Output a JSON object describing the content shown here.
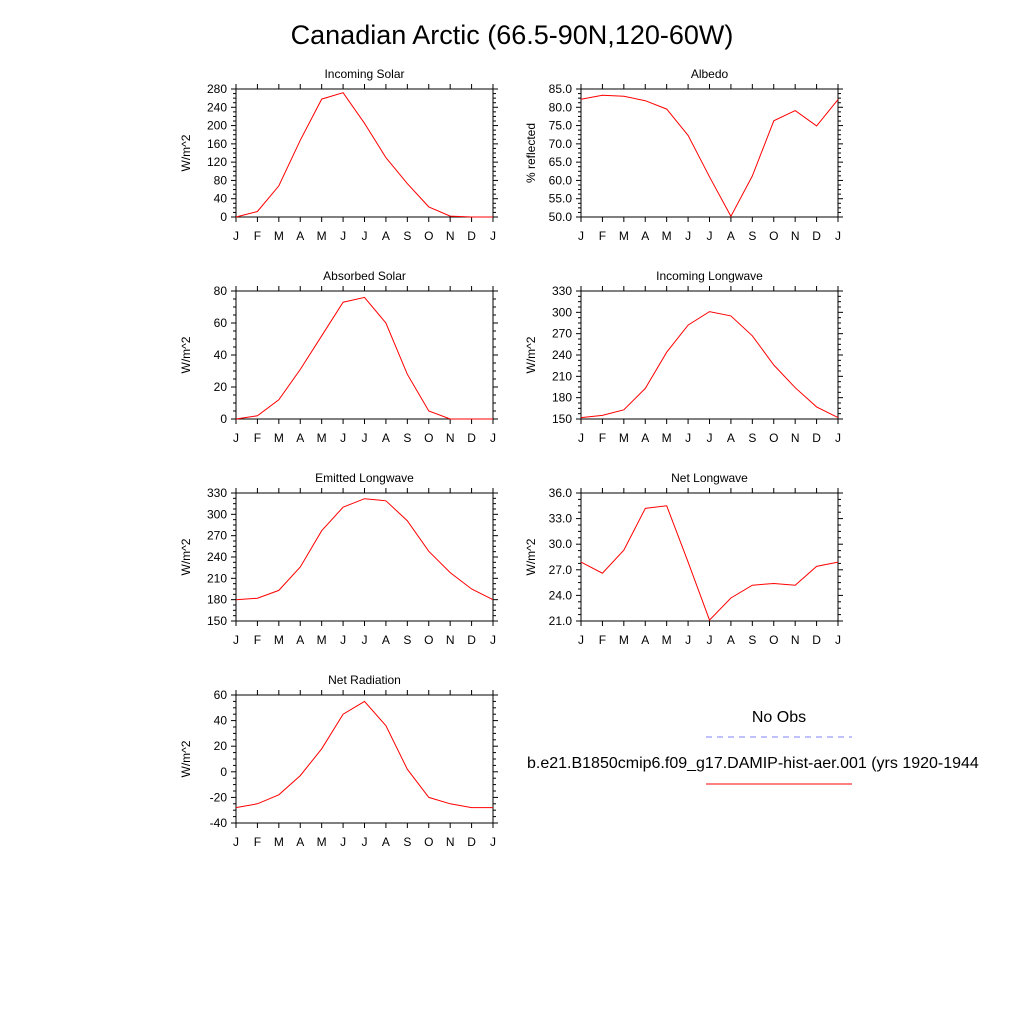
{
  "page": {
    "title": "Canadian Arctic (66.5-90N,120-60W)"
  },
  "legend": {
    "obs_label": "No Obs",
    "obs_color": "#8080ff",
    "model_label": "b.e21.B1850cmip6.f09_g17.DAMIP-hist-aer.001 (yrs 1920-1944",
    "model_color": "#ff0000"
  },
  "chart_data": [
    {
      "type": "line",
      "title": "Incoming Solar",
      "ylabel": "W/m^2",
      "categories": [
        "J",
        "F",
        "M",
        "A",
        "M",
        "J",
        "J",
        "A",
        "S",
        "O",
        "N",
        "D",
        "J"
      ],
      "ylim": [
        0,
        280
      ],
      "yticks": [
        0,
        40,
        80,
        120,
        160,
        200,
        240,
        280
      ],
      "ytick_labels": [
        "0",
        "40",
        "80",
        "120",
        "160",
        "200",
        "240",
        "280"
      ],
      "series": [
        {
          "color": "#ff0000",
          "values": [
            0,
            12,
            68,
            168,
            258,
            272,
            205,
            130,
            73,
            22,
            2,
            0,
            0
          ]
        }
      ]
    },
    {
      "type": "line",
      "title": "Albedo",
      "ylabel": "% reflected",
      "categories": [
        "J",
        "F",
        "M",
        "A",
        "M",
        "J",
        "J",
        "A",
        "S",
        "O",
        "N",
        "D",
        "J"
      ],
      "ylim": [
        50,
        85
      ],
      "yticks": [
        50,
        55,
        60,
        65,
        70,
        75,
        80,
        85
      ],
      "ytick_labels": [
        "50.0",
        "55.0",
        "60.0",
        "65.0",
        "70.0",
        "75.0",
        "80.0",
        "85.0"
      ],
      "series": [
        {
          "color": "#ff0000",
          "values": [
            82.2,
            83.3,
            83.0,
            81.8,
            79.5,
            72.3,
            61.0,
            50.2,
            61.2,
            76.3,
            79.1,
            74.9,
            82.1
          ]
        }
      ]
    },
    {
      "type": "line",
      "title": "Absorbed Solar",
      "ylabel": "W/m^2",
      "categories": [
        "J",
        "F",
        "M",
        "A",
        "M",
        "J",
        "J",
        "A",
        "S",
        "O",
        "N",
        "D",
        "J"
      ],
      "ylim": [
        0,
        80
      ],
      "yticks": [
        0,
        20,
        40,
        60,
        80
      ],
      "ytick_labels": [
        "0",
        "20",
        "40",
        "60",
        "80"
      ],
      "series": [
        {
          "color": "#ff0000",
          "values": [
            0,
            2,
            12,
            31,
            52,
            73,
            76,
            60,
            28,
            5,
            0,
            0,
            0
          ]
        }
      ]
    },
    {
      "type": "line",
      "title": "Incoming Longwave",
      "ylabel": "W/m^2",
      "categories": [
        "J",
        "F",
        "M",
        "A",
        "M",
        "J",
        "J",
        "A",
        "S",
        "O",
        "N",
        "D",
        "J"
      ],
      "ylim": [
        150,
        330
      ],
      "yticks": [
        150,
        180,
        210,
        240,
        270,
        300,
        330
      ],
      "ytick_labels": [
        "150",
        "180",
        "210",
        "240",
        "270",
        "300",
        "330"
      ],
      "series": [
        {
          "color": "#ff0000",
          "values": [
            152,
            155,
            163,
            193,
            244,
            282,
            301,
            295,
            267,
            226,
            194,
            167,
            152
          ]
        }
      ]
    },
    {
      "type": "line",
      "title": "Emitted Longwave",
      "ylabel": "W/m^2",
      "categories": [
        "J",
        "F",
        "M",
        "A",
        "M",
        "J",
        "J",
        "A",
        "S",
        "O",
        "N",
        "D",
        "J"
      ],
      "ylim": [
        150,
        330
      ],
      "yticks": [
        150,
        180,
        210,
        240,
        270,
        300,
        330
      ],
      "ytick_labels": [
        "150",
        "180",
        "210",
        "240",
        "270",
        "300",
        "330"
      ],
      "series": [
        {
          "color": "#ff0000",
          "values": [
            180,
            182,
            193,
            226,
            277,
            310,
            322,
            319,
            291,
            248,
            218,
            195,
            180
          ]
        }
      ]
    },
    {
      "type": "line",
      "title": "Net Longwave",
      "ylabel": "W/m^2",
      "categories": [
        "J",
        "F",
        "M",
        "A",
        "M",
        "J",
        "J",
        "A",
        "S",
        "O",
        "N",
        "D",
        "J"
      ],
      "ylim": [
        21,
        36
      ],
      "yticks": [
        21,
        24,
        27,
        30,
        33,
        36
      ],
      "ytick_labels": [
        "21.0",
        "24.0",
        "27.0",
        "30.0",
        "33.0",
        "36.0"
      ],
      "series": [
        {
          "color": "#ff0000",
          "values": [
            27.9,
            26.6,
            29.3,
            34.2,
            34.5,
            27.9,
            21.1,
            23.7,
            25.2,
            25.4,
            25.2,
            27.4,
            27.9
          ]
        }
      ]
    },
    {
      "type": "line",
      "title": "Net Radiation",
      "ylabel": "W/m^2",
      "categories": [
        "J",
        "F",
        "M",
        "A",
        "M",
        "J",
        "J",
        "A",
        "S",
        "O",
        "N",
        "D",
        "J"
      ],
      "ylim": [
        -40,
        60
      ],
      "yticks": [
        -40,
        -20,
        0,
        20,
        40,
        60
      ],
      "ytick_labels": [
        "-40",
        "-20",
        "0",
        "20",
        "40",
        "60"
      ],
      "series": [
        {
          "color": "#ff0000",
          "values": [
            -28,
            -25,
            -18,
            -3,
            18,
            45,
            55,
            36,
            2,
            -20,
            -25,
            -28,
            -28
          ]
        }
      ]
    }
  ]
}
